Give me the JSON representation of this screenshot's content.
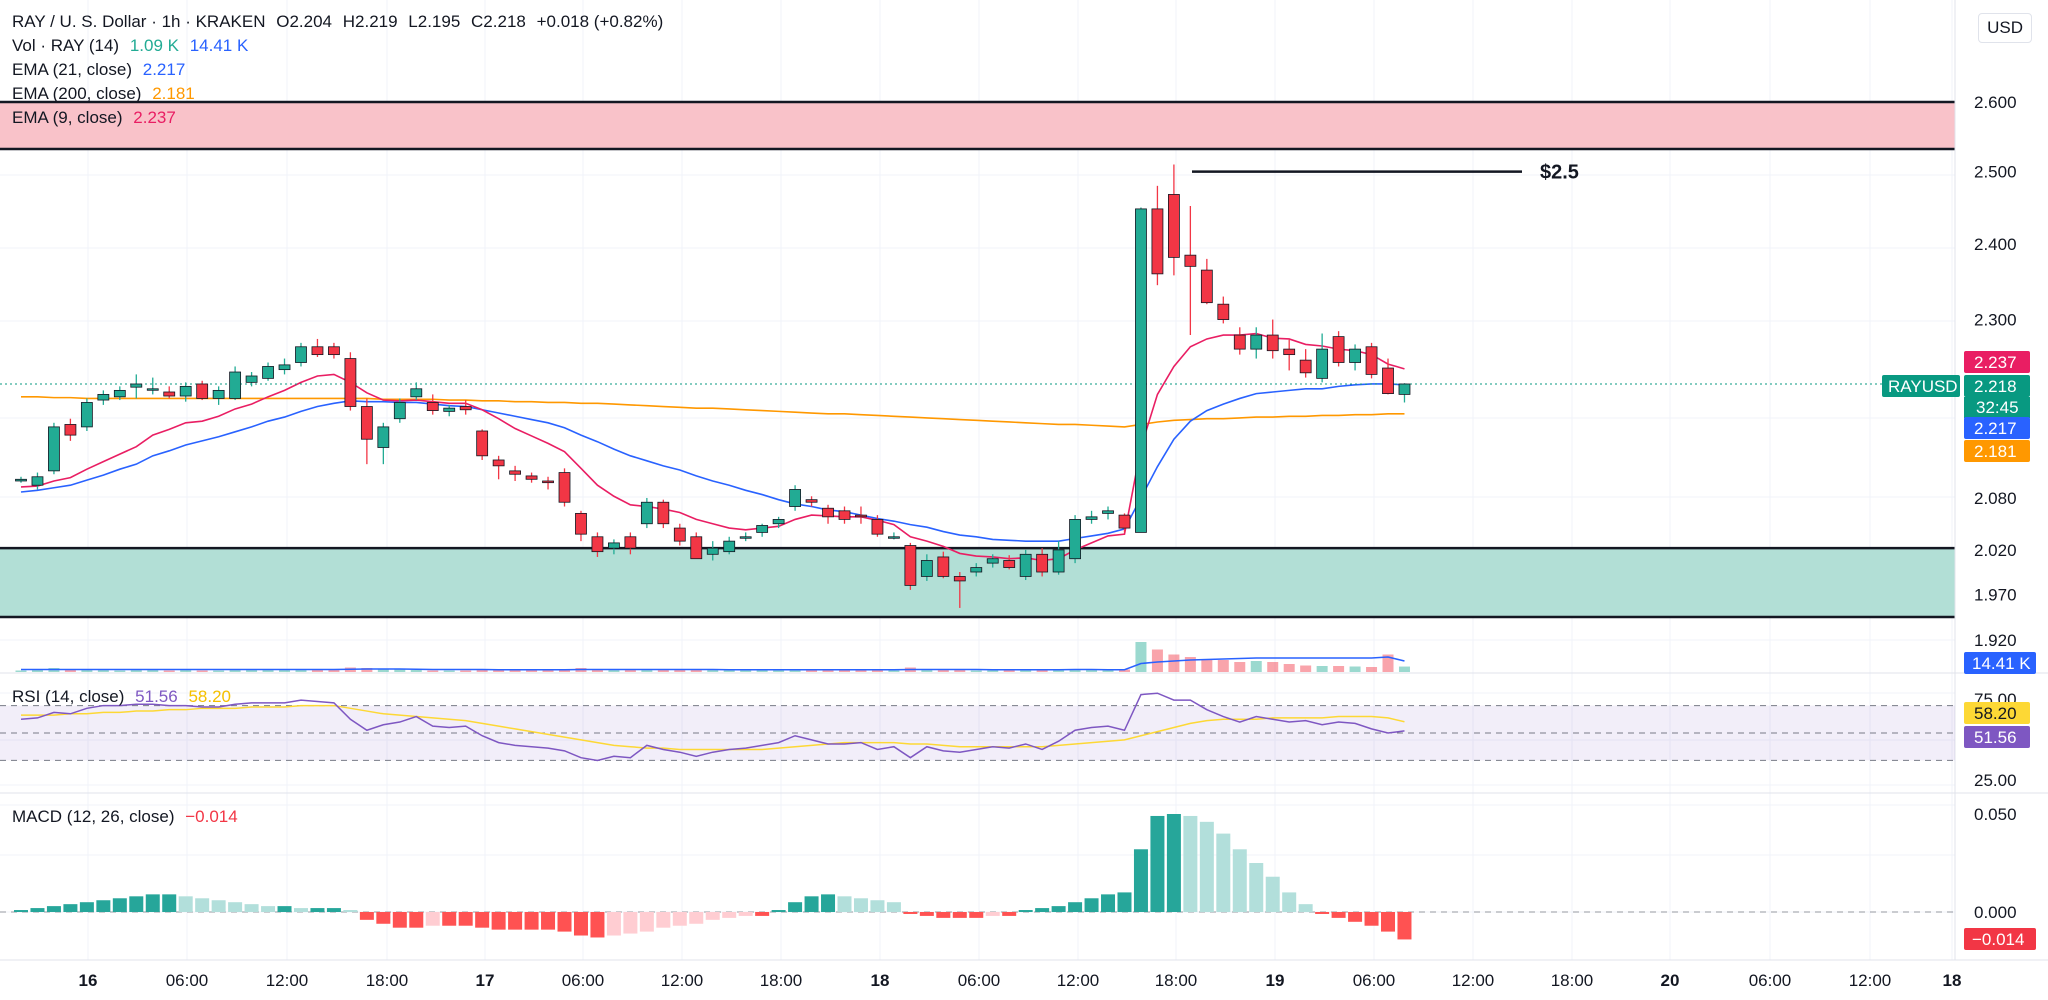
{
  "header": {
    "symbol": "RAY / U. S. Dollar · 1h · KRAKEN",
    "open": "O2.204",
    "high": "H2.219",
    "low": "L2.195",
    "close": "C2.218",
    "change": "+0.018 (+0.82%)"
  },
  "legends": {
    "vol": {
      "label": "Vol · RAY (14)",
      "v1": "1.09 K",
      "v2": "14.41 K"
    },
    "ema21": {
      "label": "EMA (21, close)",
      "value": "2.217"
    },
    "ema200": {
      "label": "EMA (200, close)",
      "value": "2.181"
    },
    "ema9": {
      "label": "EMA (9, close)",
      "value": "2.237"
    },
    "rsi": {
      "label": "RSI (14, close)",
      "v1": "51.56",
      "v2": "58.20"
    },
    "macd": {
      "label": "MACD (12, 26, close)",
      "value": "−0.014"
    }
  },
  "currency_button": "USD",
  "colors": {
    "up": "#22ab94",
    "down": "#f23645",
    "ema9": "#e91e63",
    "ema21": "#2962ff",
    "ema200": "#ff9800",
    "rsi": "#7e57c2",
    "rsi_ma": "#fdd835",
    "resistance_zone": "#f9c2c9",
    "support_zone": "#b2dfd6"
  },
  "chart_data": {
    "type": "candlestick",
    "timeframe": "1h",
    "price_axis": {
      "ticks": [
        "2.600",
        "2.500",
        "2.400",
        "2.300",
        "2.080",
        "2.020",
        "1.970",
        "1.920"
      ],
      "ylim": [
        1.92,
        2.66
      ],
      "scale": "log"
    },
    "x_ticks": [
      "16",
      "06:00",
      "12:00",
      "18:00",
      "17",
      "06:00",
      "12:00",
      "18:00",
      "18",
      "06:00",
      "12:00",
      "18:00",
      "19",
      "06:00",
      "12:00",
      "18:00",
      "20",
      "06:00",
      "12:00",
      "18"
    ],
    "candles": [
      [
        2.1,
        2.105,
        2.098,
        2.102
      ],
      [
        2.095,
        2.11,
        2.09,
        2.105
      ],
      [
        2.112,
        2.17,
        2.108,
        2.165
      ],
      [
        2.168,
        2.175,
        2.148,
        2.155
      ],
      [
        2.165,
        2.2,
        2.16,
        2.195
      ],
      [
        2.198,
        2.21,
        2.192,
        2.205
      ],
      [
        2.202,
        2.215,
        2.198,
        2.21
      ],
      [
        2.214,
        2.23,
        2.2,
        2.218
      ],
      [
        2.212,
        2.226,
        2.205,
        2.212
      ],
      [
        2.208,
        2.215,
        2.2,
        2.203
      ],
      [
        2.203,
        2.22,
        2.196,
        2.215
      ],
      [
        2.218,
        2.222,
        2.198,
        2.2
      ],
      [
        2.2,
        2.215,
        2.192,
        2.21
      ],
      [
        2.2,
        2.24,
        2.198,
        2.233
      ],
      [
        2.22,
        2.233,
        2.215,
        2.228
      ],
      [
        2.225,
        2.245,
        2.222,
        2.24
      ],
      [
        2.236,
        2.25,
        2.23,
        2.242
      ],
      [
        2.245,
        2.27,
        2.24,
        2.265
      ],
      [
        2.265,
        2.275,
        2.252,
        2.255
      ],
      [
        2.265,
        2.27,
        2.25,
        2.255
      ],
      [
        2.25,
        2.258,
        2.185,
        2.19
      ],
      [
        2.19,
        2.2,
        2.12,
        2.15
      ],
      [
        2.14,
        2.17,
        2.12,
        2.165
      ],
      [
        2.175,
        2.2,
        2.17,
        2.195
      ],
      [
        2.202,
        2.22,
        2.198,
        2.212
      ],
      [
        2.195,
        2.205,
        2.18,
        2.185
      ],
      [
        2.184,
        2.192,
        2.178,
        2.188
      ],
      [
        2.19,
        2.198,
        2.18,
        2.186
      ],
      [
        2.16,
        2.162,
        2.125,
        2.13
      ],
      [
        2.125,
        2.13,
        2.102,
        2.118
      ],
      [
        2.112,
        2.118,
        2.1,
        2.108
      ],
      [
        2.106,
        2.11,
        2.098,
        2.102
      ],
      [
        2.1,
        2.105,
        2.09,
        2.098
      ],
      [
        2.11,
        2.115,
        2.07,
        2.075
      ],
      [
        2.062,
        2.065,
        2.03,
        2.038
      ],
      [
        2.035,
        2.04,
        2.012,
        2.018
      ],
      [
        2.022,
        2.032,
        2.015,
        2.028
      ],
      [
        2.035,
        2.04,
        2.015,
        2.022
      ],
      [
        2.05,
        2.08,
        2.045,
        2.075
      ],
      [
        2.075,
        2.078,
        2.045,
        2.05
      ],
      [
        2.045,
        2.05,
        2.025,
        2.03
      ],
      [
        2.035,
        2.04,
        2.01,
        2.01
      ],
      [
        2.015,
        2.03,
        2.008,
        2.022
      ],
      [
        2.018,
        2.035,
        2.015,
        2.03
      ],
      [
        2.035,
        2.04,
        2.03,
        2.035
      ],
      [
        2.04,
        2.05,
        2.035,
        2.048
      ],
      [
        2.05,
        2.058,
        2.045,
        2.055
      ],
      [
        2.07,
        2.095,
        2.065,
        2.09
      ],
      [
        2.078,
        2.082,
        2.07,
        2.075
      ],
      [
        2.068,
        2.072,
        2.05,
        2.058
      ],
      [
        2.065,
        2.07,
        2.05,
        2.055
      ],
      [
        2.06,
        2.07,
        2.05,
        2.058
      ],
      [
        2.055,
        2.06,
        2.035,
        2.038
      ],
      [
        2.035,
        2.04,
        2.032,
        2.035
      ],
      [
        2.025,
        2.028,
        1.975,
        1.98
      ],
      [
        1.99,
        2.015,
        1.985,
        2.008
      ],
      [
        2.012,
        2.018,
        1.988,
        1.99
      ],
      [
        1.99,
        1.995,
        1.955,
        1.985
      ],
      [
        1.995,
        2.005,
        1.99,
        2.0
      ],
      [
        2.005,
        2.015,
        2.0,
        2.01
      ],
      [
        2.008,
        2.014,
        1.998,
        2.0
      ],
      [
        1.99,
        2.02,
        1.986,
        2.015
      ],
      [
        2.015,
        2.022,
        1.99,
        1.995
      ],
      [
        1.995,
        2.03,
        1.992,
        2.02
      ],
      [
        2.01,
        2.06,
        2.005,
        2.055
      ],
      [
        2.055,
        2.065,
        2.05,
        2.058
      ],
      [
        2.062,
        2.07,
        2.055,
        2.065
      ],
      [
        2.06,
        2.062,
        2.04,
        2.045
      ],
      [
        2.04,
        2.45,
        2.04,
        2.448
      ],
      [
        2.448,
        2.48,
        2.345,
        2.36
      ],
      [
        2.468,
        2.51,
        2.358,
        2.382
      ],
      [
        2.385,
        2.452,
        2.28,
        2.37
      ],
      [
        2.365,
        2.38,
        2.32,
        2.322
      ],
      [
        2.32,
        2.33,
        2.295,
        2.3
      ],
      [
        2.28,
        2.29,
        2.255,
        2.262
      ],
      [
        2.262,
        2.29,
        2.25,
        2.28
      ],
      [
        2.28,
        2.3,
        2.25,
        2.26
      ],
      [
        2.262,
        2.274,
        2.235,
        2.255
      ],
      [
        2.248,
        2.262,
        2.226,
        2.232
      ],
      [
        2.225,
        2.282,
        2.22,
        2.262
      ],
      [
        2.278,
        2.285,
        2.24,
        2.245
      ],
      [
        2.245,
        2.268,
        2.235,
        2.262
      ],
      [
        2.265,
        2.27,
        2.225,
        2.23
      ],
      [
        2.238,
        2.25,
        2.205,
        2.206
      ],
      [
        2.205,
        2.219,
        2.195,
        2.218
      ]
    ],
    "ema9": [
      2.093,
      2.094,
      2.1,
      2.104,
      2.114,
      2.123,
      2.132,
      2.141,
      2.155,
      2.162,
      2.17,
      2.172,
      2.178,
      2.187,
      2.193,
      2.202,
      2.21,
      2.22,
      2.228,
      2.23,
      2.22,
      2.207,
      2.198,
      2.197,
      2.198,
      2.196,
      2.194,
      2.194,
      2.186,
      2.175,
      2.163,
      2.154,
      2.145,
      2.135,
      2.115,
      2.095,
      2.082,
      2.072,
      2.07,
      2.067,
      2.063,
      2.055,
      2.05,
      2.045,
      2.043,
      2.045,
      2.047,
      2.055,
      2.06,
      2.059,
      2.058,
      2.058,
      2.054,
      2.049,
      2.035,
      2.03,
      2.024,
      2.016,
      2.013,
      2.012,
      2.01,
      2.011,
      2.008,
      2.01,
      2.02,
      2.028,
      2.036,
      2.038,
      2.14,
      2.205,
      2.24,
      2.265,
      2.275,
      2.28,
      2.28,
      2.282,
      2.276,
      2.275,
      2.268,
      2.266,
      2.262,
      2.26,
      2.255,
      2.243,
      2.237
    ],
    "ema21": [
      2.087,
      2.089,
      2.092,
      2.095,
      2.101,
      2.107,
      2.114,
      2.12,
      2.13,
      2.136,
      2.143,
      2.148,
      2.153,
      2.159,
      2.165,
      2.172,
      2.177,
      2.184,
      2.19,
      2.194,
      2.197,
      2.196,
      2.196,
      2.195,
      2.195,
      2.193,
      2.191,
      2.19,
      2.186,
      2.182,
      2.178,
      2.174,
      2.17,
      2.164,
      2.155,
      2.147,
      2.138,
      2.13,
      2.124,
      2.118,
      2.113,
      2.106,
      2.1,
      2.095,
      2.089,
      2.084,
      2.078,
      2.073,
      2.07,
      2.066,
      2.064,
      2.06,
      2.056,
      2.053,
      2.049,
      2.046,
      2.041,
      2.037,
      2.035,
      2.032,
      2.031,
      2.03,
      2.03,
      2.03,
      2.033,
      2.036,
      2.039,
      2.044,
      2.08,
      2.117,
      2.15,
      2.172,
      2.185,
      2.193,
      2.2,
      2.206,
      2.208,
      2.21,
      2.212,
      2.212,
      2.215,
      2.217,
      2.218,
      2.218,
      2.217
    ],
    "ema200": [
      2.202,
      2.202,
      2.201,
      2.201,
      2.2,
      2.2,
      2.2,
      2.2,
      2.2,
      2.2,
      2.2,
      2.2,
      2.2,
      2.2,
      2.2,
      2.2,
      2.2,
      2.2,
      2.2,
      2.2,
      2.2,
      2.2,
      2.199,
      2.199,
      2.199,
      2.199,
      2.198,
      2.198,
      2.197,
      2.197,
      2.196,
      2.196,
      2.195,
      2.195,
      2.194,
      2.194,
      2.193,
      2.192,
      2.191,
      2.19,
      2.189,
      2.188,
      2.188,
      2.187,
      2.186,
      2.185,
      2.184,
      2.183,
      2.182,
      2.181,
      2.181,
      2.18,
      2.179,
      2.178,
      2.177,
      2.176,
      2.175,
      2.174,
      2.173,
      2.172,
      2.171,
      2.17,
      2.169,
      2.168,
      2.168,
      2.167,
      2.166,
      2.165,
      2.168,
      2.171,
      2.173,
      2.174,
      2.175,
      2.175,
      2.176,
      2.177,
      2.177,
      2.178,
      2.178,
      2.179,
      2.179,
      2.18,
      2.18,
      2.181,
      2.181
    ],
    "volume": [
      0.3,
      0.4,
      0.8,
      0.5,
      0.6,
      0.4,
      0.3,
      0.5,
      0.4,
      0.3,
      0.4,
      0.3,
      0.3,
      0.5,
      0.4,
      0.4,
      0.4,
      0.6,
      0.4,
      0.4,
      0.9,
      0.8,
      0.6,
      0.5,
      0.4,
      0.3,
      0.3,
      0.3,
      0.6,
      0.4,
      0.3,
      0.3,
      0.3,
      0.5,
      0.8,
      0.5,
      0.5,
      0.4,
      0.4,
      0.4,
      0.4,
      0.6,
      0.4,
      0.4,
      0.3,
      0.3,
      0.3,
      0.5,
      0.3,
      0.4,
      0.4,
      0.3,
      0.4,
      0.3,
      0.9,
      0.5,
      0.4,
      0.6,
      0.3,
      0.3,
      0.3,
      0.4,
      0.4,
      0.4,
      0.6,
      0.4,
      0.3,
      0.5,
      6.0,
      4.5,
      3.5,
      3.0,
      2.6,
      2.4,
      2.0,
      2.2,
      2.0,
      1.6,
      1.3,
      1.2,
      1.2,
      1.1,
      1.0,
      3.5,
      1.09
    ],
    "volume_ma": [
      0.5,
      0.5,
      0.5,
      0.5,
      0.5,
      0.5,
      0.5,
      0.5,
      0.5,
      0.5,
      0.5,
      0.5,
      0.5,
      0.5,
      0.5,
      0.5,
      0.5,
      0.5,
      0.5,
      0.5,
      0.55,
      0.6,
      0.6,
      0.6,
      0.55,
      0.5,
      0.5,
      0.5,
      0.5,
      0.45,
      0.45,
      0.45,
      0.45,
      0.45,
      0.5,
      0.5,
      0.5,
      0.5,
      0.5,
      0.5,
      0.5,
      0.5,
      0.5,
      0.45,
      0.45,
      0.45,
      0.45,
      0.45,
      0.45,
      0.45,
      0.45,
      0.45,
      0.45,
      0.45,
      0.5,
      0.5,
      0.5,
      0.5,
      0.5,
      0.45,
      0.45,
      0.45,
      0.45,
      0.45,
      0.5,
      0.5,
      0.45,
      0.45,
      1.7,
      2.0,
      2.2,
      2.4,
      2.5,
      2.6,
      2.7,
      2.8,
      2.8,
      2.8,
      2.8,
      2.8,
      2.8,
      2.8,
      2.8,
      3.0,
      2.2
    ],
    "volume_axis": {
      "label": "14.41 K"
    },
    "rsi": [
      60,
      61,
      65,
      64,
      68,
      70,
      70,
      71,
      71,
      70,
      70,
      69,
      69,
      71,
      72,
      72,
      72,
      74,
      73,
      72,
      60,
      52,
      56,
      58,
      62,
      55,
      54,
      55,
      48,
      43,
      41,
      40,
      39,
      37,
      32,
      30,
      33,
      32,
      41,
      38,
      36,
      33,
      36,
      38,
      39,
      41,
      43,
      48,
      45,
      42,
      42,
      43,
      38,
      40,
      32,
      40,
      37,
      36,
      38,
      40,
      39,
      42,
      38,
      44,
      52,
      54,
      55,
      52,
      78,
      79,
      74,
      74,
      67,
      62,
      58,
      62,
      60,
      58,
      59,
      56,
      58,
      57,
      53,
      50,
      51.56
    ],
    "rsi_ma": [
      63,
      63,
      63,
      64,
      64,
      65,
      65,
      66,
      66,
      67,
      67,
      68,
      68,
      68,
      69,
      69,
      69,
      70,
      70,
      70,
      68,
      66,
      64,
      63,
      62,
      61,
      60,
      59,
      57,
      55,
      53,
      51,
      49,
      47,
      45,
      43,
      41,
      40,
      39,
      39,
      38,
      38,
      38,
      38,
      38,
      38,
      39,
      40,
      41,
      42,
      43,
      43,
      43,
      43,
      42,
      42,
      41,
      40,
      40,
      40,
      40,
      40,
      40,
      41,
      42,
      43,
      44,
      45,
      48,
      51,
      54,
      57,
      59,
      60,
      60,
      60,
      61,
      61,
      61,
      61,
      62,
      62,
      62,
      61,
      58.2
    ],
    "rsi_axis": {
      "ticks": [
        "75.00",
        "25.00"
      ],
      "ylim": [
        15,
        85
      ],
      "bands": [
        70,
        50,
        30
      ]
    },
    "macd_hist": [
      0.001,
      0.002,
      0.003,
      0.004,
      0.005,
      0.006,
      0.007,
      0.008,
      0.009,
      0.009,
      0.008,
      0.007,
      0.006,
      0.005,
      0.004,
      0.003,
      0.003,
      0.002,
      0.002,
      0.002,
      0.001,
      -0.004,
      -0.006,
      -0.008,
      -0.008,
      -0.007,
      -0.007,
      -0.007,
      -0.008,
      -0.009,
      -0.009,
      -0.009,
      -0.009,
      -0.01,
      -0.012,
      -0.013,
      -0.012,
      -0.011,
      -0.01,
      -0.008,
      -0.007,
      -0.006,
      -0.004,
      -0.003,
      -0.002,
      -0.002,
      0.001,
      0.005,
      0.008,
      0.009,
      0.008,
      0.007,
      0.006,
      0.005,
      -0.001,
      -0.002,
      -0.003,
      -0.003,
      -0.003,
      -0.002,
      -0.002,
      0.001,
      0.002,
      0.003,
      0.005,
      0.007,
      0.009,
      0.01,
      0.032,
      0.049,
      0.05,
      0.049,
      0.046,
      0.04,
      0.032,
      0.025,
      0.018,
      0.01,
      0.004,
      -0.001,
      -0.003,
      -0.005,
      -0.007,
      -0.01,
      -0.014
    ],
    "macd_axis": {
      "ticks": [
        "0.050",
        "0.000"
      ],
      "ylim": [
        -0.03,
        0.06
      ]
    },
    "zones": [
      {
        "type": "resistance",
        "top": 2.6,
        "bottom": 2.532
      },
      {
        "type": "support",
        "top": 2.022,
        "bottom": 1.945
      }
    ],
    "hline": {
      "price": 2.5,
      "label": "$2.5"
    },
    "price_labels": [
      {
        "text": "2.237",
        "price": 2.237,
        "color": "#e91e63"
      },
      {
        "text": "2.218",
        "price": 2.218,
        "color": "#089981",
        "name": "RAYUSD",
        "sub": "32:45"
      },
      {
        "text": "2.217",
        "price": 2.217,
        "color": "#2962ff"
      },
      {
        "text": "2.181",
        "price": 2.181,
        "color": "#ff9800"
      }
    ],
    "rsi_labels": [
      {
        "text": "58.20",
        "color": "#fdd835",
        "dark": true
      },
      {
        "text": "51.56",
        "color": "#7e57c2"
      }
    ],
    "macd_label": {
      "text": "−0.014",
      "color": "#f23645"
    }
  }
}
